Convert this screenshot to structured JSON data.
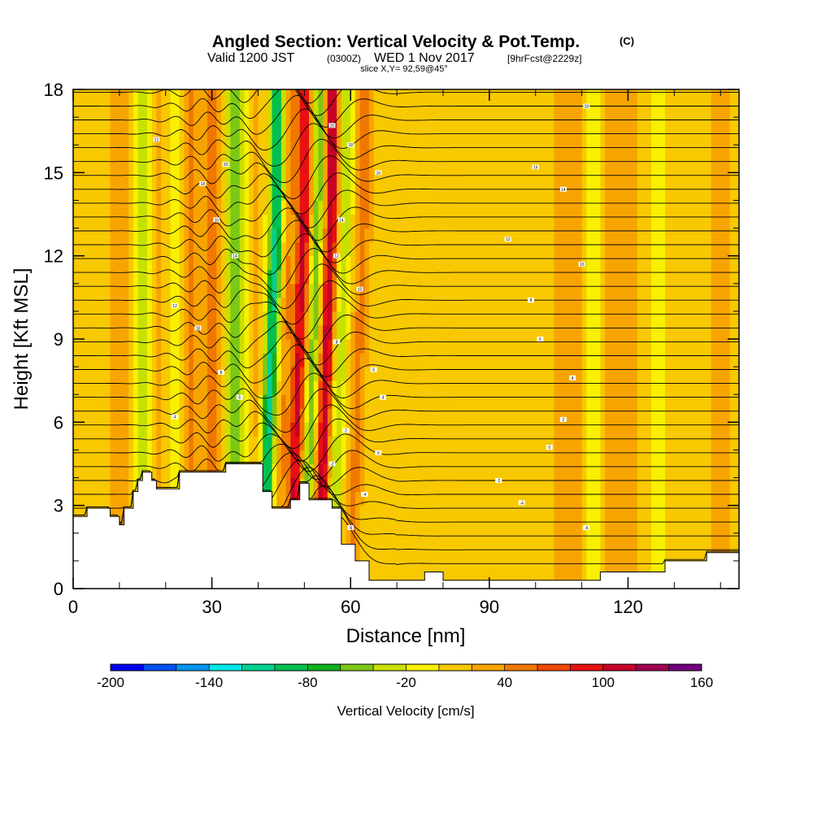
{
  "header": {
    "title_main": "Angled Section: Vertical Velocity & Pot.Temp.",
    "title_unit": "(C)",
    "valid_prefix": "Valid 1200 JST",
    "valid_utc": "(0300Z)",
    "valid_date": "WED 1 Nov 2017",
    "forecast": "[9hrFcst@2229z]",
    "slice": "slice X,Y= 92,59@45°"
  },
  "chart_data": {
    "type": "heatmap",
    "xlabel": "Distance [nm]",
    "ylabel": "Height [Kft MSL]",
    "xlim": [
      0,
      144
    ],
    "ylim": [
      0,
      18
    ],
    "x_ticks": [
      0,
      30,
      60,
      90,
      120
    ],
    "y_ticks": [
      0,
      3,
      6,
      9,
      12,
      15,
      18
    ],
    "colorbar": {
      "label": "Vertical Velocity [cm/s]",
      "min": -200,
      "max": 160,
      "step": 20,
      "tick_labels": [
        "-200",
        "-140",
        "-80",
        "-20",
        "40",
        "100",
        "160"
      ],
      "colors": [
        "#0000f0",
        "#0050f0",
        "#0094f0",
        "#00e8e8",
        "#00d090",
        "#00c050",
        "#10b020",
        "#7cc814",
        "#c8e000",
        "#f8f000",
        "#f8c800",
        "#f8a400",
        "#f07800",
        "#f04800",
        "#e81010",
        "#c80028",
        "#a00050",
        "#700080"
      ]
    },
    "velocity_features": [
      {
        "x": 0,
        "amp": 12,
        "width": 6
      },
      {
        "x": 10,
        "amp": 30,
        "width": 2.5
      },
      {
        "x": 15,
        "amp": -40,
        "width": 2
      },
      {
        "x": 19,
        "amp": 20,
        "width": 2
      },
      {
        "x": 22,
        "amp": -30,
        "width": 1.8
      },
      {
        "x": 25,
        "amp": 40,
        "width": 1.8
      },
      {
        "x": 30,
        "amp": 45,
        "width": 2.2
      },
      {
        "x": 35,
        "amp": -65,
        "width": 2
      },
      {
        "x": 39,
        "amp": 20,
        "width": 1.5
      },
      {
        "x": 44,
        "amp": -110,
        "width": 1.4
      },
      {
        "x": 47,
        "amp": 35,
        "width": 1.2
      },
      {
        "x": 50,
        "amp": 100,
        "width": 1.5
      },
      {
        "x": 53,
        "amp": -60,
        "width": 1.2
      },
      {
        "x": 56,
        "amp": 110,
        "width": 1.4
      },
      {
        "x": 59,
        "amp": -40,
        "width": 1.4
      },
      {
        "x": 63,
        "amp": 40,
        "width": 1.8
      },
      {
        "x": 78,
        "amp": 12,
        "width": 6
      },
      {
        "x": 100,
        "amp": 15,
        "width": 7
      },
      {
        "x": 108,
        "amp": 30,
        "width": 3
      },
      {
        "x": 113,
        "amp": -35,
        "width": 2
      },
      {
        "x": 116,
        "amp": 30,
        "width": 3
      },
      {
        "x": 122,
        "amp": 15,
        "width": 4
      },
      {
        "x": 126,
        "amp": -25,
        "width": 2
      },
      {
        "x": 132,
        "amp": 15,
        "width": 3
      },
      {
        "x": 140,
        "amp": 20,
        "width": 3
      }
    ],
    "terrain": [
      [
        0,
        2.6
      ],
      [
        3,
        2.6
      ],
      [
        3,
        2.9
      ],
      [
        8,
        2.9
      ],
      [
        8,
        2.6
      ],
      [
        10,
        2.6
      ],
      [
        10,
        2.3
      ],
      [
        11,
        2.3
      ],
      [
        11,
        2.9
      ],
      [
        13,
        2.9
      ],
      [
        13,
        3.5
      ],
      [
        14,
        3.5
      ],
      [
        14,
        3.9
      ],
      [
        15,
        3.9
      ],
      [
        15,
        4.2
      ],
      [
        17,
        4.2
      ],
      [
        17,
        3.9
      ],
      [
        18,
        3.9
      ],
      [
        18,
        3.6
      ],
      [
        23,
        3.6
      ],
      [
        23,
        4.2
      ],
      [
        33,
        4.2
      ],
      [
        33,
        4.5
      ],
      [
        41,
        4.5
      ],
      [
        41,
        3.5
      ],
      [
        43,
        3.5
      ],
      [
        43,
        2.9
      ],
      [
        47,
        2.9
      ],
      [
        47,
        3.2
      ],
      [
        49,
        3.2
      ],
      [
        49,
        3.8
      ],
      [
        51,
        3.8
      ],
      [
        51,
        3.2
      ],
      [
        56,
        3.2
      ],
      [
        56,
        2.9
      ],
      [
        58,
        2.9
      ],
      [
        58,
        1.6
      ],
      [
        61,
        1.6
      ],
      [
        61,
        1.0
      ],
      [
        64,
        1.0
      ],
      [
        64,
        0.3
      ],
      [
        76,
        0.3
      ],
      [
        76,
        0.6
      ],
      [
        80,
        0.6
      ],
      [
        80,
        0.3
      ],
      [
        114,
        0.3
      ],
      [
        114,
        0.6
      ],
      [
        128,
        0.6
      ],
      [
        128,
        1.0
      ],
      [
        137,
        1.0
      ],
      [
        137,
        1.3
      ],
      [
        144,
        1.3
      ]
    ],
    "isentropes": {
      "count": 36,
      "base_height": 0.9,
      "spacing": 0.5
    },
    "contour_labels": [
      {
        "text": "22",
        "x": 18,
        "y": 16.2
      },
      {
        "text": "20",
        "x": 33,
        "y": 15.3
      },
      {
        "text": "18",
        "x": 28,
        "y": 14.6
      },
      {
        "text": "16",
        "x": 31,
        "y": 13.3
      },
      {
        "text": "14",
        "x": 35,
        "y": 12.0
      },
      {
        "text": "12",
        "x": 22,
        "y": 10.2
      },
      {
        "text": "10",
        "x": 27,
        "y": 9.4
      },
      {
        "text": "8",
        "x": 32,
        "y": 7.8
      },
      {
        "text": "6",
        "x": 36,
        "y": 6.9
      },
      {
        "text": "4",
        "x": 22,
        "y": 6.2
      },
      {
        "text": "20",
        "x": 56,
        "y": 16.7
      },
      {
        "text": "18",
        "x": 60,
        "y": 16.0
      },
      {
        "text": "16",
        "x": 66,
        "y": 15.0
      },
      {
        "text": "14",
        "x": 58,
        "y": 13.3
      },
      {
        "text": "12",
        "x": 57,
        "y": 12.0
      },
      {
        "text": "10",
        "x": 62,
        "y": 10.8
      },
      {
        "text": "8",
        "x": 57,
        "y": 8.9
      },
      {
        "text": "6",
        "x": 65,
        "y": 7.9
      },
      {
        "text": "4",
        "x": 67,
        "y": 6.9
      },
      {
        "text": "2",
        "x": 59,
        "y": 5.7
      },
      {
        "text": "0",
        "x": 66,
        "y": 4.9
      },
      {
        "text": "-2",
        "x": 56,
        "y": 4.5
      },
      {
        "text": "-4",
        "x": 63,
        "y": 3.4
      },
      {
        "text": "-6",
        "x": 60,
        "y": 2.2
      },
      {
        "text": "18",
        "x": 111,
        "y": 17.4
      },
      {
        "text": "16",
        "x": 100,
        "y": 15.2
      },
      {
        "text": "14",
        "x": 106,
        "y": 14.4
      },
      {
        "text": "12",
        "x": 94,
        "y": 12.6
      },
      {
        "text": "10",
        "x": 110,
        "y": 11.7
      },
      {
        "text": "8",
        "x": 99,
        "y": 10.4
      },
      {
        "text": "6",
        "x": 101,
        "y": 9.0
      },
      {
        "text": "4",
        "x": 108,
        "y": 7.6
      },
      {
        "text": "2",
        "x": 106,
        "y": 6.1
      },
      {
        "text": "0",
        "x": 103,
        "y": 5.1
      },
      {
        "text": "-2",
        "x": 92,
        "y": 3.9
      },
      {
        "text": "-4",
        "x": 97,
        "y": 3.1
      },
      {
        "text": "-6",
        "x": 111,
        "y": 2.2
      }
    ]
  }
}
